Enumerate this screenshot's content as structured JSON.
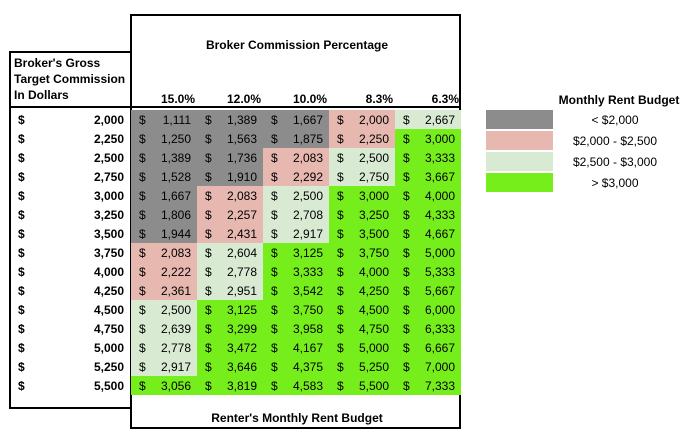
{
  "header": {
    "title": "Broker Commission Percentage",
    "left_label_lines": [
      "Broker's Gross",
      "Target Commission",
      "In Dollars"
    ],
    "percentages": [
      "15.0%",
      "12.0%",
      "10.0%",
      "8.3%",
      "6.3%"
    ],
    "footer": "Renter's Monthly Rent Budget"
  },
  "currency_symbol": "$",
  "commissions": [
    "2,000",
    "2,250",
    "2,500",
    "2,750",
    "3,000",
    "3,250",
    "3,500",
    "3,750",
    "4,000",
    "4,250",
    "4,500",
    "4,750",
    "5,000",
    "5,250",
    "5,500"
  ],
  "budget_rows": [
    [
      "1,111",
      "1,389",
      "1,667",
      "2,000",
      "2,667"
    ],
    [
      "1,250",
      "1,563",
      "1,875",
      "2,250",
      "3,000"
    ],
    [
      "1,389",
      "1,736",
      "2,083",
      "2,500",
      "3,333"
    ],
    [
      "1,528",
      "1,910",
      "2,292",
      "2,750",
      "3,667"
    ],
    [
      "1,667",
      "2,083",
      "2,500",
      "3,000",
      "4,000"
    ],
    [
      "1,806",
      "2,257",
      "2,708",
      "3,250",
      "4,333"
    ],
    [
      "1,944",
      "2,431",
      "2,917",
      "3,500",
      "4,667"
    ],
    [
      "2,083",
      "2,604",
      "3,125",
      "3,750",
      "5,000"
    ],
    [
      "2,222",
      "2,778",
      "3,333",
      "4,000",
      "5,333"
    ],
    [
      "2,361",
      "2,951",
      "3,542",
      "4,250",
      "5,667"
    ],
    [
      "2,500",
      "3,125",
      "3,750",
      "4,500",
      "6,000"
    ],
    [
      "2,639",
      "3,299",
      "3,958",
      "4,750",
      "6,333"
    ],
    [
      "2,778",
      "3,472",
      "4,167",
      "5,000",
      "6,667"
    ],
    [
      "2,917",
      "3,646",
      "4,375",
      "5,250",
      "7,000"
    ],
    [
      "3,056",
      "3,819",
      "4,583",
      "5,500",
      "7,333"
    ]
  ],
  "legend": {
    "title": "Monthly Rent Budget",
    "items": [
      {
        "label": "< $2,000",
        "color": "#8c8c8c"
      },
      {
        "label": "$2,000 - $2,500",
        "color": "#e6b8af"
      },
      {
        "label": "$2,500 - $3,000",
        "color": "#d9ead3"
      },
      {
        "label": "> $3,000",
        "color": "#76ee1c"
      }
    ]
  }
}
